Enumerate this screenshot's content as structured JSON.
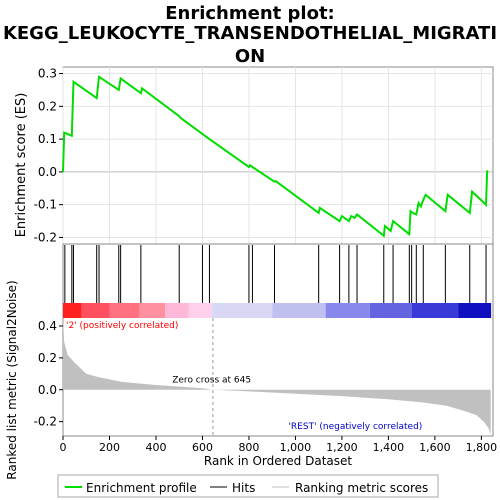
{
  "chart_data": {
    "type": "line",
    "title": "Enrichment plot: KEGG_LEUKOCYTE_TRANSENDOTHELIAL_MIGRATION",
    "title_lines": [
      "Enrichment plot:",
      "KEGG_LEUKOCYTE_TRANSENDOTHELIAL_MIGRATI",
      "ON"
    ],
    "xlabel": "Rank in Ordered Dataset",
    "es_panel": {
      "ylabel": "Enrichment score (ES)",
      "ylim": [
        -0.22,
        0.32
      ],
      "yticks": [
        -0.2,
        -0.1,
        0.0,
        0.1,
        0.2,
        0.3
      ],
      "ytick_labels": [
        "-0.2",
        "-0.1",
        "0.0",
        "0.1",
        "0.2",
        "0.3"
      ],
      "curve_color": "#00dd00",
      "series": [
        {
          "x": [
            0,
            5,
            38,
            45,
            145,
            150,
            155,
            240,
            248,
            335,
            340,
            500,
            505,
            630,
            800,
            805,
            815,
            910,
            915,
            1100,
            1105,
            1190,
            1200,
            1230,
            1240,
            1255,
            1265,
            1380,
            1385,
            1410,
            1420,
            1490,
            1495,
            1505,
            1520,
            1530,
            1540,
            1550,
            1560,
            1645,
            1655,
            1750,
            1760,
            1820,
            1825
          ],
          "y": [
            0.0,
            0.12,
            0.11,
            0.275,
            0.225,
            0.26,
            0.29,
            0.25,
            0.285,
            0.24,
            0.255,
            0.17,
            0.165,
            0.1,
            0.015,
            0.02,
            0.015,
            -0.03,
            -0.028,
            -0.125,
            -0.11,
            -0.15,
            -0.135,
            -0.15,
            -0.135,
            -0.14,
            -0.13,
            -0.195,
            -0.165,
            -0.18,
            -0.15,
            -0.19,
            -0.12,
            -0.125,
            -0.13,
            -0.095,
            -0.105,
            -0.085,
            -0.07,
            -0.12,
            -0.07,
            -0.125,
            -0.06,
            -0.1,
            0.005
          ]
        }
      ]
    },
    "hits": [
      8,
      38,
      45,
      145,
      155,
      240,
      248,
      335,
      500,
      600,
      630,
      800,
      815,
      910,
      1100,
      1190,
      1230,
      1265,
      1380,
      1420,
      1490,
      1500,
      1520,
      1550,
      1645,
      1750,
      1820
    ],
    "xlim": [
      0,
      1850
    ],
    "xticks": [
      0,
      200,
      400,
      600,
      800,
      1000,
      1200,
      1400,
      1600,
      1800
    ],
    "xtick_labels": [
      "0",
      "200",
      "400",
      "600",
      "800",
      "1,000",
      "1,200",
      "1,400",
      "1,600",
      "1,800"
    ],
    "metric_panel": {
      "ylabel": "Ranked list metric (Signal2Noise)",
      "ylim": [
        -0.29,
        0.45
      ],
      "yticks": [
        -0.2,
        0.0,
        0.2,
        0.4
      ],
      "ytick_labels": [
        "-0.2",
        "0.0",
        "0.2",
        "0.4"
      ],
      "fill_color": "#c0c0c0",
      "curve": {
        "x": [
          0,
          5,
          20,
          50,
          100,
          150,
          250,
          400,
          600,
          645,
          800,
          1000,
          1200,
          1400,
          1550,
          1650,
          1720,
          1780,
          1810,
          1830,
          1840
        ],
        "y": [
          0.45,
          0.3,
          0.22,
          0.17,
          0.1,
          0.08,
          0.05,
          0.03,
          0.01,
          0.0,
          -0.01,
          -0.025,
          -0.04,
          -0.06,
          -0.08,
          -0.1,
          -0.13,
          -0.16,
          -0.2,
          -0.24,
          -0.28
        ]
      },
      "zero_cross": 645,
      "zero_cross_label": "Zero cross at 645",
      "pos_label": "'2' (positively correlated)",
      "neg_label": "'REST' (negatively correlated)",
      "pos_label_color": "#ff0000",
      "neg_label_color": "#0000cc"
    },
    "color_bar": [
      {
        "x0": 0,
        "x1": 80,
        "color": "#ff2020"
      },
      {
        "x0": 80,
        "x1": 200,
        "color": "#ff5060"
      },
      {
        "x0": 200,
        "x1": 330,
        "color": "#ff7080"
      },
      {
        "x0": 330,
        "x1": 440,
        "color": "#ff90a0"
      },
      {
        "x0": 440,
        "x1": 540,
        "color": "#ffb8d8"
      },
      {
        "x0": 540,
        "x1": 640,
        "color": "#ffd0ec"
      },
      {
        "x0": 640,
        "x1": 900,
        "color": "#d8d8f4"
      },
      {
        "x0": 900,
        "x1": 1130,
        "color": "#c0c0f0"
      },
      {
        "x0": 1130,
        "x1": 1320,
        "color": "#8888ec"
      },
      {
        "x0": 1320,
        "x1": 1500,
        "color": "#6464e0"
      },
      {
        "x0": 1500,
        "x1": 1700,
        "color": "#3a3ad8"
      },
      {
        "x0": 1700,
        "x1": 1842,
        "color": "#1010c0"
      }
    ],
    "legend": {
      "placement": "bottom",
      "entries": [
        "Enrichment profile",
        "Hits",
        "Ranking metric scores"
      ]
    }
  }
}
